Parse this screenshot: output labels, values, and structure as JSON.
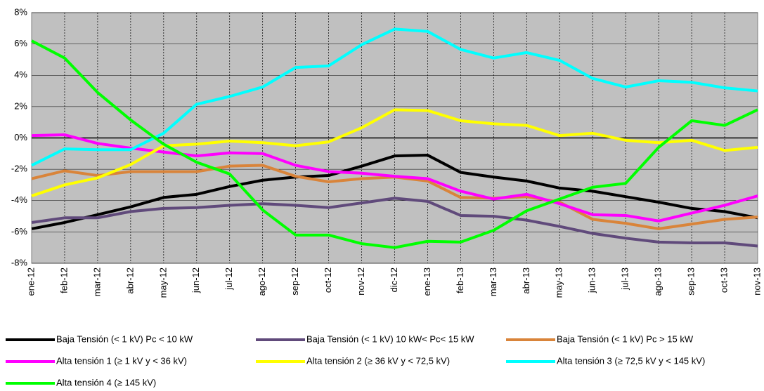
{
  "chart_data": {
    "type": "line",
    "categories": [
      "ene-12",
      "feb-12",
      "mar-12",
      "abr-12",
      "may-12",
      "jun-12",
      "jul-12",
      "ago-12",
      "sep-12",
      "oct-12",
      "nov-12",
      "dic-12",
      "ene-13",
      "feb-13",
      "mar-13",
      "abr-13",
      "may-13",
      "jun-13",
      "jul-13",
      "ago-13",
      "sep-13",
      "oct-13",
      "nov-13"
    ],
    "series": [
      {
        "name": "Baja Tensión (< 1 kV) Pc < 10 kW",
        "color": "#000000",
        "values": [
          -5.8,
          -5.4,
          -4.9,
          -4.4,
          -3.8,
          -3.6,
          -3.1,
          -2.7,
          -2.5,
          -2.4,
          -1.8,
          -1.15,
          -1.1,
          -2.2,
          -2.5,
          -2.75,
          -3.2,
          -3.4,
          -3.75,
          -4.1,
          -4.5,
          -4.7,
          -5.1
        ]
      },
      {
        "name": "Baja Tensión (< 1 kV) 10 kW< Pc< 15 kW",
        "color": "#604a7b",
        "values": [
          -5.4,
          -5.1,
          -5.1,
          -4.7,
          -4.5,
          -4.45,
          -4.3,
          -4.2,
          -4.3,
          -4.45,
          -4.15,
          -3.85,
          -4.05,
          -4.95,
          -5.0,
          -5.25,
          -5.65,
          -6.1,
          -6.4,
          -6.65,
          -6.7,
          -6.7,
          -6.9
        ]
      },
      {
        "name": "Baja Tensión (< 1 kV) Pc > 15 kW",
        "color": "#d9843a",
        "values": [
          -2.6,
          -2.1,
          -2.4,
          -2.15,
          -2.15,
          -2.15,
          -1.8,
          -1.75,
          -2.45,
          -2.8,
          -2.6,
          -2.5,
          -2.75,
          -3.8,
          -3.85,
          -3.75,
          -4.1,
          -5.2,
          -5.45,
          -5.8,
          -5.5,
          -5.2,
          -5.05
        ]
      },
      {
        "name": "Alta tensión 1 (≥  1 kV y  < 36 kV)",
        "color": "#ff00ff",
        "values": [
          0.15,
          0.2,
          -0.35,
          -0.65,
          -0.9,
          -1.15,
          -0.95,
          -1.0,
          -1.75,
          -2.15,
          -2.25,
          -2.45,
          -2.6,
          -3.4,
          -3.9,
          -3.6,
          -4.2,
          -4.9,
          -4.95,
          -5.3,
          -4.8,
          -4.3,
          -3.7
        ]
      },
      {
        "name": "Alta tensión 2 (≥  36 kV y < 72,5 kV)",
        "color": "#ffff00",
        "values": [
          -3.7,
          -3.0,
          -2.55,
          -1.7,
          -0.5,
          -0.4,
          -0.2,
          -0.3,
          -0.5,
          -0.25,
          0.65,
          1.8,
          1.75,
          1.1,
          0.9,
          0.8,
          0.15,
          0.3,
          -0.15,
          -0.3,
          -0.15,
          -0.8,
          -0.6
        ]
      },
      {
        "name": "Alta tensión 3 (≥ 72,5 kV y < 145 kV)",
        "color": "#00ffff",
        "values": [
          -1.75,
          -0.7,
          -0.75,
          -0.75,
          0.3,
          2.15,
          2.65,
          3.25,
          4.5,
          4.6,
          5.95,
          6.95,
          6.8,
          5.65,
          5.1,
          5.45,
          4.95,
          3.8,
          3.25,
          3.65,
          3.55,
          3.2,
          3.0
        ]
      },
      {
        "name": "Alta tensión 4 (≥ 145 kV)",
        "color": "#00ff00",
        "values": [
          6.2,
          5.1,
          2.9,
          1.15,
          -0.4,
          -1.55,
          -2.3,
          -4.6,
          -6.2,
          -6.2,
          -6.75,
          -7.0,
          -6.6,
          -6.65,
          -5.9,
          -4.65,
          -3.9,
          -3.15,
          -2.9,
          -0.6,
          1.1,
          0.8,
          1.8
        ]
      }
    ],
    "ylim": [
      -8,
      8
    ],
    "yticks": [
      {
        "value": -8,
        "label": "-8%"
      },
      {
        "value": -6,
        "label": "-6%"
      },
      {
        "value": -4,
        "label": "-4%"
      },
      {
        "value": -2,
        "label": "-2%"
      },
      {
        "value": 0,
        "label": "0%"
      },
      {
        "value": 2,
        "label": "2%"
      },
      {
        "value": 4,
        "label": "4%"
      },
      {
        "value": 6,
        "label": "6%"
      },
      {
        "value": 8,
        "label": "8%"
      }
    ],
    "grid": true
  }
}
